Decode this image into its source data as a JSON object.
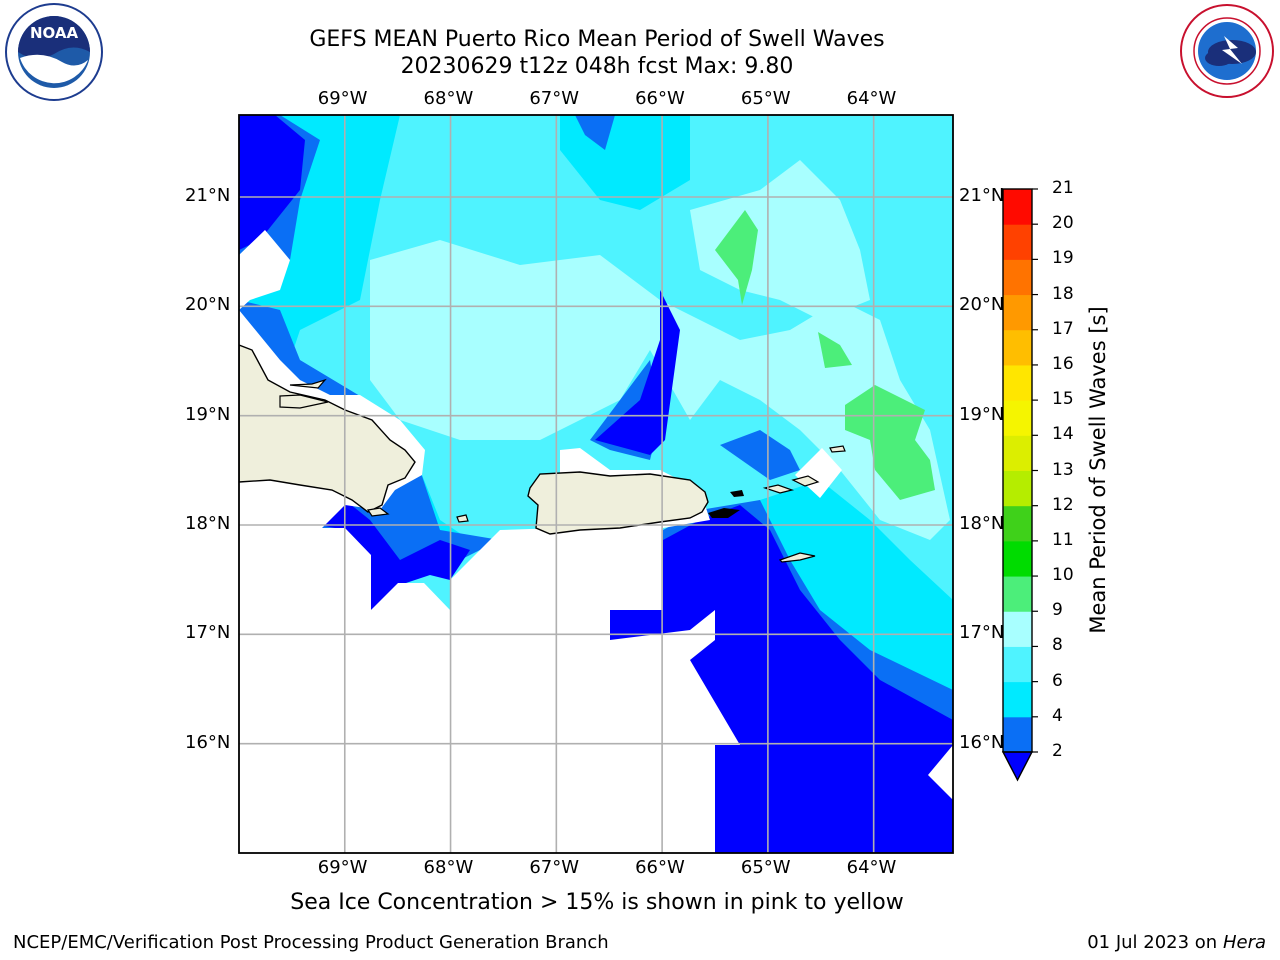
{
  "header": {
    "title_line1": "GEFS MEAN Puerto Rico Mean Period of Swell Waves",
    "title_line2": "20230629 t12z 048h fcst   Max: 9.80"
  },
  "logos": {
    "left": {
      "icon": "noaa-logo",
      "text": "NOAA",
      "ring_text": "NATIONAL OCEANIC AND ATMOSPHERIC ADMINISTRATION · U.S. DEPARTMENT OF COMMERCE"
    },
    "right": {
      "icon": "nws-logo",
      "ring_text": "NATIONAL WEATHER SERVICE"
    }
  },
  "map": {
    "extent": {
      "lon_min": -70.0,
      "lon_max": -63.25,
      "lat_min": 15.0,
      "lat_max": 21.75
    },
    "lon_ticks": [
      "69°W",
      "68°W",
      "67°W",
      "66°W",
      "65°W",
      "64°W"
    ],
    "lat_ticks": [
      "21°N",
      "20°N",
      "19°N",
      "18°N",
      "17°N",
      "16°N"
    ],
    "land_color": "#efefdc",
    "no_data_color": "#ffffff"
  },
  "colorbar": {
    "title": "Mean Period of Swell Waves [s]",
    "levels": [
      "2",
      "4",
      "6",
      "8",
      "9",
      "10",
      "11",
      "12",
      "13",
      "14",
      "15",
      "16",
      "17",
      "18",
      "19",
      "20",
      "21"
    ],
    "colors": [
      "#0a6ff5",
      "#00eaff",
      "#4ff3ff",
      "#a8ffff",
      "#4cee7a",
      "#00dc00",
      "#3fd11a",
      "#b5ed00",
      "#dcee00",
      "#f5f500",
      "#ffe600",
      "#ffbe00",
      "#ff9900",
      "#ff7300",
      "#ff4100",
      "#ff0a00"
    ],
    "underflow_color": "#0000ff"
  },
  "caption": "Sea Ice Concentration > 15% is shown in pink to yellow",
  "footer": {
    "left": "NCEP/EMC/Verification Post Processing Product Generation Branch",
    "right_date": "01 Jul 2023 on",
    "right_host": "Hera"
  }
}
